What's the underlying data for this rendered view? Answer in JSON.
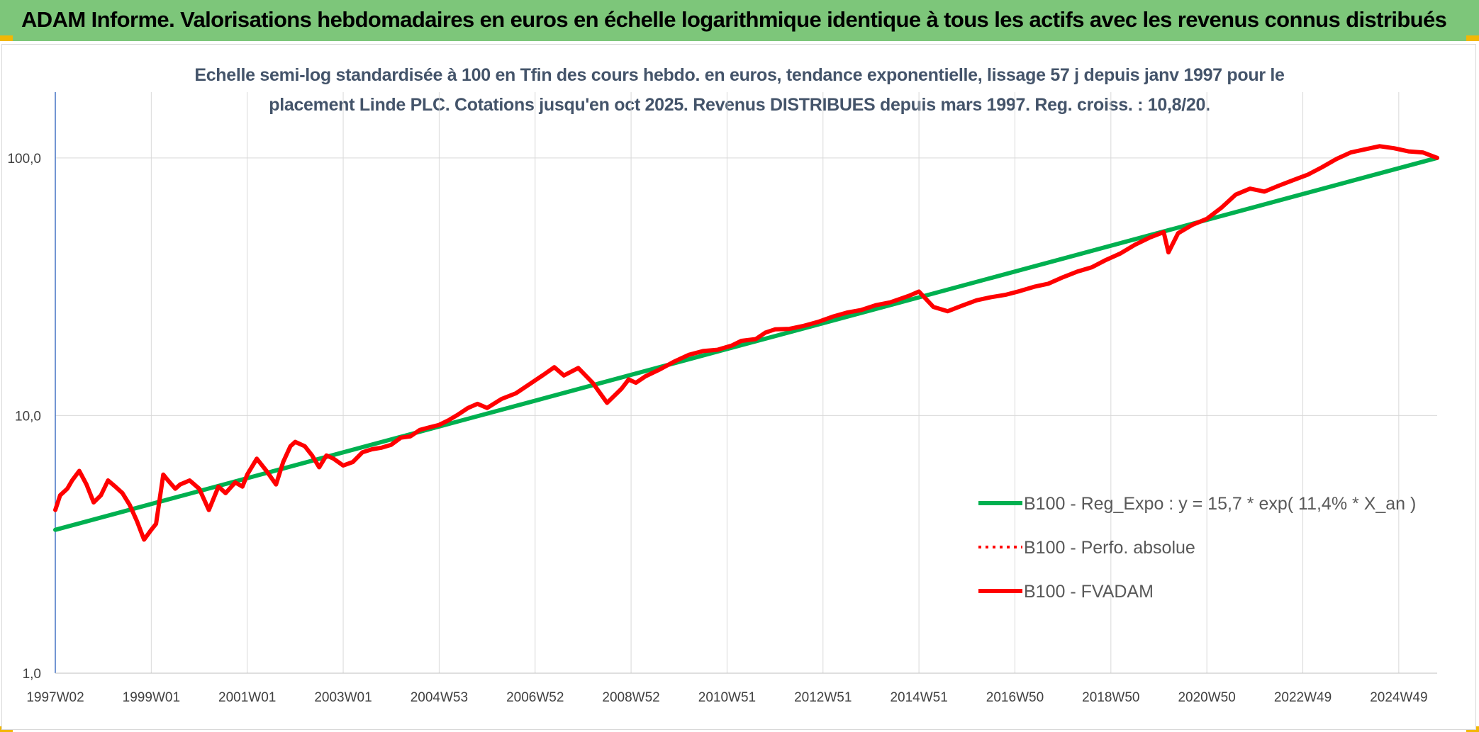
{
  "header": {
    "title": "ADAM Informe. Valorisations hebdomadaires en euros en échelle logarithmique identique à tous les actifs avec les revenus connus distribués",
    "colors": {
      "background": "#7dc67a",
      "corner_accent": "#f2b705"
    }
  },
  "chart_data": {
    "type": "line",
    "title_lines": [
      "Echelle semi-log standardisée à 100 en Tfin des cours hebdo. en euros, tendance exponentielle, lissage 57 j depuis janv 1997 pour le",
      "placement Linde PLC. Cotations jusqu'en oct 2025. Revenus DISTRIBUES depuis mars 1997. Reg. croiss. : 10,8/20."
    ],
    "y_scale": "log",
    "ylim": [
      1,
      180
    ],
    "y_ticks": [
      {
        "value": 1,
        "label": "1,0"
      },
      {
        "value": 10,
        "label": "10,0"
      },
      {
        "value": 100,
        "label": "100,0"
      }
    ],
    "x_range": [
      1997.0,
      2025.8
    ],
    "x_ticks": [
      {
        "x": 1997.0,
        "label": "1997W02"
      },
      {
        "x": 1999.0,
        "label": "1999W01"
      },
      {
        "x": 2001.0,
        "label": "2001W01"
      },
      {
        "x": 2003.0,
        "label": "2003W01"
      },
      {
        "x": 2005.0,
        "label": "2004W53"
      },
      {
        "x": 2007.0,
        "label": "2006W52"
      },
      {
        "x": 2009.0,
        "label": "2008W52"
      },
      {
        "x": 2011.0,
        "label": "2010W51"
      },
      {
        "x": 2013.0,
        "label": "2012W51"
      },
      {
        "x": 2015.0,
        "label": "2014W51"
      },
      {
        "x": 2017.0,
        "label": "2016W50"
      },
      {
        "x": 2019.0,
        "label": "2018W50"
      },
      {
        "x": 2021.0,
        "label": "2020W50"
      },
      {
        "x": 2023.0,
        "label": "2022W49"
      },
      {
        "x": 2025.0,
        "label": "2024W49"
      }
    ],
    "grid": true,
    "legend_position": "bottom-right",
    "series": [
      {
        "name": "B100 - Reg_Expo : y = 15,7 * exp( 11,4% *  X_an )",
        "color": "#00b050",
        "style": "solid",
        "x": [
          1997.0,
          2025.8
        ],
        "y": [
          3.6,
          100
        ]
      },
      {
        "name": "B100 - Perfo. absolue",
        "color": "#ff0000",
        "style": "dotted",
        "x": [],
        "y": []
      },
      {
        "name": "B100 - FVADAM",
        "color": "#ff0000",
        "style": "solid",
        "x": [
          1997.0,
          1997.1,
          1997.25,
          1997.35,
          1997.5,
          1997.65,
          1997.8,
          1997.95,
          1998.1,
          1998.25,
          1998.4,
          1998.55,
          1998.7,
          1998.85,
          1999.0,
          1999.1,
          1999.25,
          1999.35,
          1999.5,
          1999.6,
          1999.8,
          2000.0,
          2000.2,
          2000.4,
          2000.55,
          2000.75,
          2000.9,
          2001.0,
          2001.2,
          2001.4,
          2001.6,
          2001.75,
          2001.9,
          2002.0,
          2002.2,
          2002.35,
          2002.5,
          2002.65,
          2002.8,
          2003.0,
          2003.2,
          2003.4,
          2003.6,
          2003.8,
          2004.0,
          2004.2,
          2004.4,
          2004.6,
          2004.8,
          2005.0,
          2005.2,
          2005.4,
          2005.6,
          2005.8,
          2006.0,
          2006.3,
          2006.6,
          2006.9,
          2007.2,
          2007.4,
          2007.6,
          2007.9,
          2008.2,
          2008.5,
          2008.8,
          2008.95,
          2009.1,
          2009.3,
          2009.6,
          2009.9,
          2010.2,
          2010.5,
          2010.8,
          2011.1,
          2011.3,
          2011.6,
          2011.8,
          2012.0,
          2012.3,
          2012.6,
          2012.9,
          2013.2,
          2013.5,
          2013.8,
          2014.1,
          2014.4,
          2014.8,
          2015.0,
          2015.3,
          2015.6,
          2015.9,
          2016.2,
          2016.5,
          2016.8,
          2017.1,
          2017.4,
          2017.7,
          2018.0,
          2018.3,
          2018.6,
          2018.9,
          2019.2,
          2019.5,
          2019.8,
          2020.1,
          2020.2,
          2020.4,
          2020.7,
          2021.0,
          2021.3,
          2021.6,
          2021.9,
          2022.2,
          2022.5,
          2022.8,
          2023.1,
          2023.4,
          2023.7,
          2024.0,
          2024.3,
          2024.6,
          2024.9,
          2025.2,
          2025.5,
          2025.8
        ],
        "y": [
          4.3,
          4.9,
          5.2,
          5.6,
          6.1,
          5.4,
          4.6,
          4.9,
          5.6,
          5.3,
          5.0,
          4.5,
          3.9,
          3.3,
          3.6,
          3.8,
          5.9,
          5.6,
          5.2,
          5.4,
          5.6,
          5.2,
          4.3,
          5.3,
          5.0,
          5.5,
          5.3,
          5.9,
          6.8,
          6.1,
          5.4,
          6.6,
          7.6,
          7.9,
          7.6,
          7.0,
          6.3,
          7.0,
          6.8,
          6.4,
          6.6,
          7.2,
          7.4,
          7.5,
          7.7,
          8.2,
          8.3,
          8.8,
          9.0,
          9.2,
          9.6,
          10.1,
          10.7,
          11.1,
          10.7,
          11.6,
          12.2,
          13.3,
          14.5,
          15.4,
          14.3,
          15.3,
          13.4,
          11.2,
          12.7,
          13.8,
          13.4,
          14.2,
          15.1,
          16.2,
          17.2,
          17.8,
          18.0,
          18.7,
          19.5,
          19.8,
          21.0,
          21.6,
          21.7,
          22.3,
          23.1,
          24.2,
          25.1,
          25.7,
          26.8,
          27.5,
          29.2,
          30.3,
          26.4,
          25.4,
          26.7,
          28.0,
          28.8,
          29.4,
          30.4,
          31.6,
          32.5,
          34.4,
          36.2,
          37.6,
          40.2,
          42.6,
          46.0,
          49.0,
          51.5,
          43.0,
          51.0,
          55.0,
          58.0,
          64.0,
          72.0,
          76.0,
          74.0,
          78.0,
          82.0,
          86.0,
          92.0,
          99.0,
          105.0,
          108.0,
          111.0,
          109.0,
          106.0,
          105.0,
          100.0
        ]
      }
    ]
  }
}
